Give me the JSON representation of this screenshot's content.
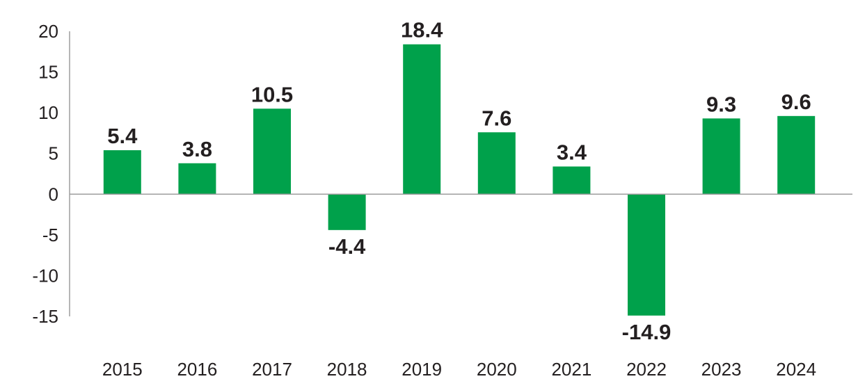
{
  "chart_data": {
    "type": "bar",
    "title": "",
    "xlabel": "",
    "ylabel": "",
    "categories": [
      "2015",
      "2016",
      "2017",
      "2018",
      "2019",
      "2020",
      "2021",
      "2022",
      "2023",
      "2024"
    ],
    "values": [
      5.4,
      3.8,
      10.5,
      -4.4,
      18.4,
      7.6,
      3.4,
      -14.9,
      9.3,
      9.6
    ],
    "data_labels": [
      "5.4",
      "3.8",
      "10.5",
      "-4.4",
      "18.4",
      "7.6",
      "3.4",
      "-14.9",
      "9.3",
      "9.6"
    ],
    "y_ticks": [
      "20",
      "15",
      "10",
      "5",
      "0",
      "-5",
      "-10",
      "-15"
    ],
    "ylim": [
      -15,
      20
    ],
    "grid": false,
    "legend": "none",
    "bar_color": "#00a14b"
  }
}
